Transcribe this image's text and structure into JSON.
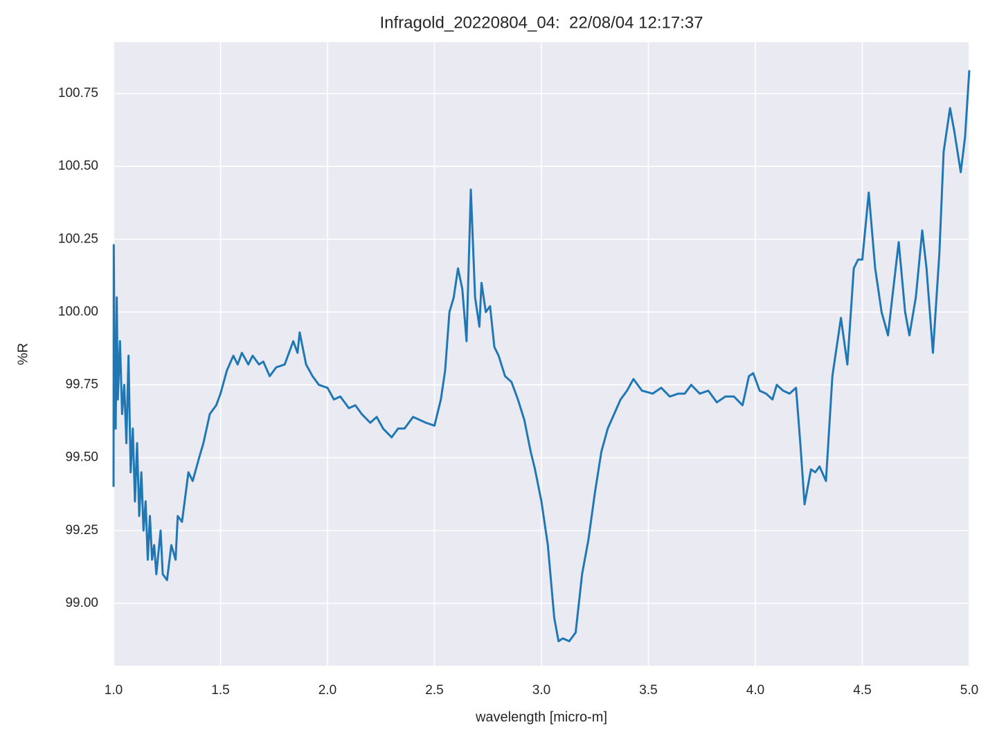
{
  "chart_data": {
    "type": "line",
    "title": "Infragold_20220804_04:  22/08/04 12:17:37",
    "x_label": "wavelength [micro-m]",
    "y_label": "%R",
    "xlim": [
      1.0,
      5.0
    ],
    "ylim": [
      98.786,
      100.926
    ],
    "xticks": [
      {
        "value": 1,
        "label": "1.0"
      },
      1.5,
      {
        "value": 2,
        "label": "2.0"
      },
      2.5,
      {
        "value": 3,
        "label": "3.0"
      },
      3.5,
      {
        "value": 4,
        "label": "4.0"
      },
      4.5,
      {
        "value": 5,
        "label": "5.0"
      }
    ],
    "yticks": [
      {
        "value": 99,
        "label": "99.00"
      },
      99.25,
      {
        "value": 99.5,
        "label": "99.50"
      },
      99.75,
      {
        "value": 100,
        "label": "100.00"
      },
      100.25,
      {
        "value": 100.5,
        "label": "100.50"
      },
      100.75
    ],
    "grid": true,
    "series": [
      {
        "color": "#1f77b4",
        "x": [
          1.0,
          1.001,
          1.005,
          1.01,
          1.015,
          1.02,
          1.03,
          1.04,
          1.05,
          1.06,
          1.07,
          1.08,
          1.09,
          1.1,
          1.11,
          1.12,
          1.13,
          1.14,
          1.15,
          1.16,
          1.17,
          1.18,
          1.19,
          1.2,
          1.22,
          1.23,
          1.25,
          1.27,
          1.29,
          1.3,
          1.32,
          1.35,
          1.37,
          1.4,
          1.42,
          1.45,
          1.48,
          1.5,
          1.53,
          1.56,
          1.58,
          1.6,
          1.63,
          1.65,
          1.68,
          1.7,
          1.73,
          1.76,
          1.8,
          1.84,
          1.86,
          1.87,
          1.9,
          1.93,
          1.96,
          2.0,
          2.03,
          2.06,
          2.1,
          2.13,
          2.16,
          2.2,
          2.23,
          2.26,
          2.3,
          2.33,
          2.36,
          2.4,
          2.43,
          2.46,
          2.5,
          2.53,
          2.55,
          2.57,
          2.59,
          2.61,
          2.63,
          2.65,
          2.67,
          2.69,
          2.71,
          2.72,
          2.74,
          2.76,
          2.78,
          2.8,
          2.83,
          2.86,
          2.89,
          2.92,
          2.95,
          2.97,
          3.0,
          3.03,
          3.06,
          3.08,
          3.1,
          3.13,
          3.16,
          3.19,
          3.22,
          3.25,
          3.28,
          3.31,
          3.34,
          3.37,
          3.4,
          3.43,
          3.47,
          3.52,
          3.56,
          3.6,
          3.64,
          3.67,
          3.7,
          3.74,
          3.78,
          3.82,
          3.86,
          3.9,
          3.94,
          3.97,
          3.99,
          4.02,
          4.05,
          4.08,
          4.1,
          4.13,
          4.16,
          4.19,
          4.21,
          4.23,
          4.26,
          4.28,
          4.3,
          4.33,
          4.36,
          4.4,
          4.43,
          4.46,
          4.48,
          4.5,
          4.53,
          4.56,
          4.59,
          4.62,
          4.64,
          4.67,
          4.7,
          4.72,
          4.75,
          4.78,
          4.8,
          4.83,
          4.86,
          4.88,
          4.91,
          4.93,
          4.96,
          4.98,
          5.0
        ],
        "values": [
          99.4,
          100.23,
          99.8,
          99.6,
          100.05,
          99.7,
          99.9,
          99.65,
          99.75,
          99.55,
          99.85,
          99.45,
          99.6,
          99.35,
          99.55,
          99.3,
          99.45,
          99.25,
          99.35,
          99.15,
          99.3,
          99.15,
          99.2,
          99.1,
          99.25,
          99.1,
          99.08,
          99.2,
          99.15,
          99.3,
          99.28,
          99.45,
          99.42,
          99.5,
          99.55,
          99.65,
          99.68,
          99.72,
          99.8,
          99.85,
          99.82,
          99.86,
          99.82,
          99.85,
          99.82,
          99.83,
          99.78,
          99.81,
          99.82,
          99.9,
          99.86,
          99.93,
          99.82,
          99.78,
          99.75,
          99.74,
          99.7,
          99.71,
          99.67,
          99.68,
          99.65,
          99.62,
          99.64,
          99.6,
          99.57,
          99.6,
          99.6,
          99.64,
          99.63,
          99.62,
          99.61,
          99.7,
          99.8,
          100.0,
          100.05,
          100.15,
          100.08,
          99.9,
          100.42,
          100.05,
          99.95,
          100.1,
          100.0,
          100.02,
          99.88,
          99.85,
          99.78,
          99.76,
          99.7,
          99.63,
          99.52,
          99.46,
          99.35,
          99.2,
          98.95,
          98.87,
          98.88,
          98.87,
          98.9,
          99.1,
          99.22,
          99.38,
          99.52,
          99.6,
          99.65,
          99.7,
          99.73,
          99.77,
          99.73,
          99.72,
          99.74,
          99.71,
          99.72,
          99.72,
          99.75,
          99.72,
          99.73,
          99.69,
          99.71,
          99.71,
          99.68,
          99.78,
          99.79,
          99.73,
          99.72,
          99.7,
          99.75,
          99.73,
          99.72,
          99.74,
          99.55,
          99.34,
          99.46,
          99.45,
          99.47,
          99.42,
          99.78,
          99.98,
          99.82,
          100.15,
          100.18,
          100.18,
          100.41,
          100.15,
          100.0,
          99.92,
          100.05,
          100.24,
          100.0,
          99.92,
          100.05,
          100.28,
          100.15,
          99.86,
          100.2,
          100.55,
          100.7,
          100.62,
          100.48,
          100.6,
          100.83
        ]
      }
    ]
  }
}
